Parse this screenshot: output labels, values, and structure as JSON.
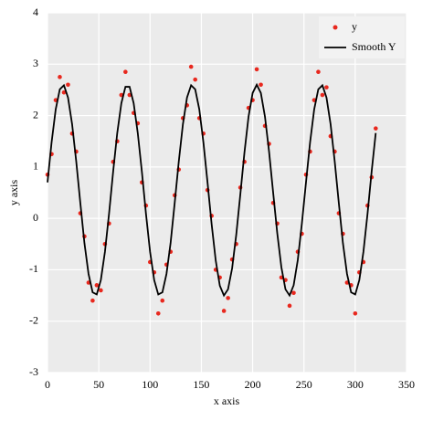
{
  "chart_data": {
    "type": "line",
    "x_label": "x axis",
    "y_label": "y axis",
    "x": [
      0,
      4,
      8,
      12,
      16,
      20,
      24,
      28,
      32,
      36,
      40,
      44,
      48,
      52,
      56,
      60,
      64,
      68,
      72,
      76,
      80,
      84,
      88,
      92,
      96,
      100,
      104,
      108,
      112,
      116,
      120,
      124,
      128,
      132,
      136,
      140,
      144,
      148,
      152,
      156,
      160,
      164,
      168,
      172,
      176,
      180,
      184,
      188,
      192,
      196,
      200,
      204,
      208,
      212,
      216,
      220,
      224,
      228,
      232,
      236,
      240,
      244,
      248,
      252,
      256,
      260,
      264,
      268,
      272,
      276,
      280,
      284,
      288,
      292,
      296,
      300,
      304,
      308,
      312,
      316,
      320
    ],
    "series": [
      {
        "name": "y",
        "type": "scatter",
        "color": "#e8281e",
        "values": [
          0.85,
          1.25,
          2.3,
          2.75,
          2.45,
          2.6,
          1.65,
          1.3,
          0.1,
          -0.35,
          -1.25,
          -1.6,
          -1.3,
          -1.4,
          -0.5,
          -0.1,
          1.1,
          1.5,
          2.4,
          2.85,
          2.4,
          2.05,
          1.85,
          0.7,
          0.25,
          -0.85,
          -1.05,
          -1.85,
          -1.6,
          -0.9,
          -0.65,
          0.45,
          0.95,
          1.95,
          2.2,
          2.95,
          2.7,
          1.95,
          1.65,
          0.55,
          0.05,
          -1.0,
          -1.15,
          -1.8,
          -1.55,
          -0.8,
          -0.5,
          0.6,
          1.1,
          2.15,
          2.3,
          2.9,
          2.6,
          1.8,
          1.45,
          0.3,
          -0.1,
          -1.15,
          -1.2,
          -1.7,
          -1.45,
          -0.65,
          -0.3,
          0.85,
          1.3,
          2.3,
          2.85,
          2.4,
          2.55,
          1.6,
          1.3,
          0.1,
          -0.3,
          -1.25,
          -1.3,
          -1.85,
          -1.05,
          -0.85,
          0.25,
          0.8,
          1.75
        ]
      },
      {
        "name": "Smooth Y",
        "type": "line",
        "color": "#000000",
        "values": [
          0.7,
          1.48,
          2.12,
          2.51,
          2.59,
          2.35,
          1.83,
          1.11,
          0.3,
          -0.48,
          -1.08,
          -1.44,
          -1.48,
          -1.2,
          -0.65,
          0.09,
          0.91,
          1.66,
          2.24,
          2.56,
          2.56,
          2.24,
          1.66,
          0.91,
          0.09,
          -0.65,
          -1.2,
          -1.48,
          -1.44,
          -1.08,
          -0.48,
          0.3,
          1.11,
          1.83,
          2.35,
          2.59,
          2.51,
          2.12,
          1.48,
          0.7,
          -0.11,
          -0.82,
          -1.31,
          -1.5,
          -1.38,
          -0.97,
          -0.32,
          0.47,
          1.28,
          1.98,
          2.44,
          2.6,
          2.44,
          1.98,
          1.3,
          0.5,
          -0.29,
          -0.95,
          -1.38,
          -1.5,
          -1.3,
          -0.81,
          -0.1,
          0.7,
          1.48,
          2.12,
          2.51,
          2.59,
          2.35,
          1.83,
          1.11,
          0.3,
          -0.48,
          -1.08,
          -1.44,
          -1.48,
          -1.2,
          -0.65,
          0.09,
          0.91,
          1.66
        ]
      }
    ],
    "xlim": [
      0,
      350
    ],
    "xticks": [
      0,
      50,
      100,
      150,
      200,
      250,
      300,
      350
    ],
    "ylim": [
      -3,
      4
    ],
    "yticks": [
      -3,
      -2,
      -1,
      0,
      1,
      2,
      3,
      4
    ],
    "grid": true,
    "legend": "top-right"
  }
}
